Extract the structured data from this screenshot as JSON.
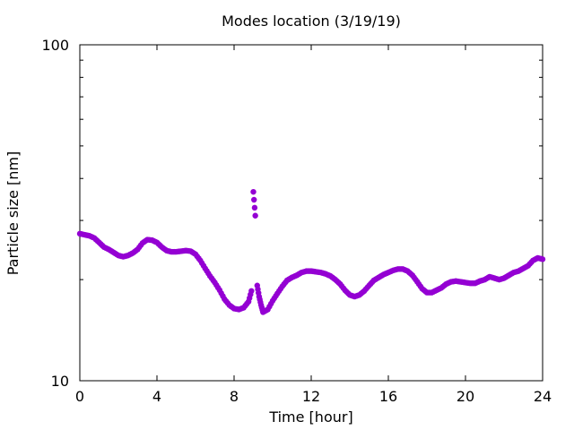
{
  "chart_data": {
    "type": "scatter",
    "title": "Modes location (3/19/19)",
    "xlabel": "Time [hour]",
    "ylabel": "Particle size [nm]",
    "xlim": [
      0,
      24
    ],
    "ylim": [
      10,
      100
    ],
    "yscale": "log",
    "grid": false,
    "legend": "none",
    "x_ticks": [
      0,
      4,
      8,
      12,
      16,
      20,
      24
    ],
    "y_ticks": [
      10,
      100
    ],
    "marker_color": "#9400d3",
    "series": [
      {
        "x": [
          0.0,
          0.25,
          0.5,
          0.75,
          1.0,
          1.25,
          1.5,
          1.75,
          2.0,
          2.25,
          2.5,
          2.75,
          3.0,
          3.25,
          3.5,
          3.75,
          4.0,
          4.25,
          4.5,
          4.75,
          5.0,
          5.25,
          5.5,
          5.75,
          6.0,
          6.25,
          6.5,
          6.75,
          7.0,
          7.25,
          7.5,
          7.75,
          8.0,
          8.25,
          8.5,
          8.75,
          8.9,
          9.0,
          9.1,
          9.2,
          9.3,
          9.4,
          9.5,
          9.75,
          10.0,
          10.25,
          10.5,
          10.75,
          11.0,
          11.25,
          11.5,
          11.75,
          12.0,
          12.25,
          12.5,
          12.75,
          13.0,
          13.25,
          13.5,
          13.75,
          14.0,
          14.25,
          14.5,
          14.75,
          15.0,
          15.25,
          15.5,
          15.75,
          16.0,
          16.25,
          16.5,
          16.75,
          17.0,
          17.25,
          17.5,
          17.75,
          18.0,
          18.25,
          18.5,
          18.75,
          19.0,
          19.25,
          19.5,
          19.75,
          20.0,
          20.25,
          20.5,
          20.75,
          21.0,
          21.25,
          21.5,
          21.75,
          22.0,
          22.25,
          22.5,
          22.75,
          23.0,
          23.25,
          23.5,
          23.75,
          24.0
        ],
        "y": [
          27.4,
          27.2,
          27.0,
          26.6,
          25.8,
          25.0,
          24.6,
          24.1,
          23.6,
          23.4,
          23.6,
          24.0,
          24.6,
          25.7,
          26.3,
          26.2,
          25.8,
          25.0,
          24.4,
          24.2,
          24.2,
          24.3,
          24.4,
          24.3,
          23.8,
          22.8,
          21.6,
          20.5,
          19.6,
          18.6,
          17.5,
          16.8,
          16.4,
          16.3,
          16.5,
          17.2,
          18.5,
          36.5,
          31.0,
          19.2,
          17.8,
          16.8,
          16.0,
          16.3,
          17.3,
          18.2,
          19.1,
          19.9,
          20.3,
          20.6,
          21.0,
          21.2,
          21.2,
          21.1,
          21.0,
          20.8,
          20.5,
          20.0,
          19.4,
          18.6,
          18.0,
          17.8,
          18.0,
          18.5,
          19.2,
          19.9,
          20.3,
          20.7,
          21.0,
          21.3,
          21.5,
          21.5,
          21.2,
          20.6,
          19.7,
          18.8,
          18.3,
          18.3,
          18.6,
          18.9,
          19.4,
          19.7,
          19.8,
          19.7,
          19.6,
          19.5,
          19.5,
          19.8,
          20.0,
          20.4,
          20.2,
          20.0,
          20.2,
          20.6,
          21.0,
          21.2,
          21.6,
          22.0,
          22.8,
          23.2,
          23.0
        ]
      }
    ]
  }
}
